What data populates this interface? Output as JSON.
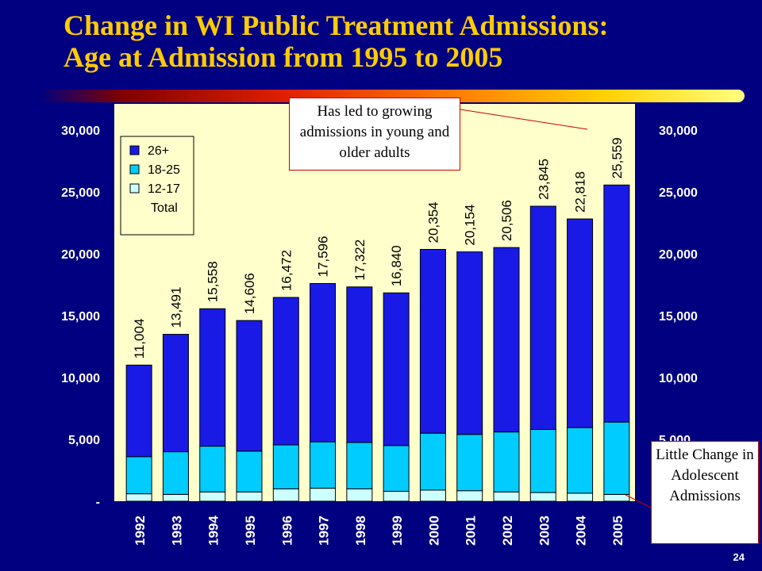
{
  "slide": {
    "title_line1": "Change in WI Public Treatment Admissions:",
    "title_line2": "Age at Admission from 1995 to 2005",
    "page_number": "24"
  },
  "callouts": {
    "top": "Has led to growing admissions in young and older adults",
    "bottom": "Little Change in Adolescent Admissions"
  },
  "colors": {
    "background": "#000080",
    "title": "#FFCC00",
    "plot_area": "#FFFFCC",
    "age_26_plus": "#1A1AE6",
    "age_18_25": "#00CCFF",
    "age_12_17": "#CCFFFF"
  },
  "chart_data": {
    "type": "bar",
    "stacked": true,
    "categories": [
      "1992",
      "1993",
      "1994",
      "1995",
      "1996",
      "1997",
      "1998",
      "1999",
      "2000",
      "2001",
      "2002",
      "2003",
      "2004",
      "2005"
    ],
    "series": [
      {
        "name": "12-17",
        "values": [
          600,
          550,
          750,
          750,
          1000,
          1050,
          1000,
          800,
          900,
          850,
          750,
          700,
          650,
          550
        ]
      },
      {
        "name": "18-25",
        "values": [
          3000,
          3450,
          3700,
          3300,
          3550,
          3750,
          3750,
          3700,
          4600,
          4550,
          4850,
          5100,
          5300,
          5850
        ]
      },
      {
        "name": "26+",
        "values": [
          7404,
          9491,
          11108,
          10556,
          11922,
          12796,
          12572,
          12340,
          14854,
          14754,
          14906,
          18045,
          16868,
          19159
        ]
      }
    ],
    "totals_name": "Total",
    "totals": [
      11004,
      13491,
      15558,
      14606,
      16472,
      17596,
      17322,
      16840,
      20354,
      20154,
      20506,
      23845,
      22818,
      25559
    ],
    "total_labels": [
      "11,004",
      "13,491",
      "15,558",
      "14,606",
      "16,472",
      "17,596",
      "17,322",
      "16,840",
      "20,354",
      "20,154",
      "20,506",
      "23,845",
      "22,818",
      "25,559"
    ],
    "ylim": [
      0,
      30000
    ],
    "yticks": [
      0,
      5000,
      10000,
      15000,
      20000,
      25000,
      30000
    ],
    "ytick_labels": [
      "-",
      "5,000",
      "10,000",
      "15,000",
      "20,000",
      "25,000",
      "30,000"
    ],
    "legend": [
      "26+",
      "18-25",
      "12-17",
      "Total"
    ],
    "legend_position": "top-left",
    "xlabel": "",
    "ylabel": ""
  }
}
